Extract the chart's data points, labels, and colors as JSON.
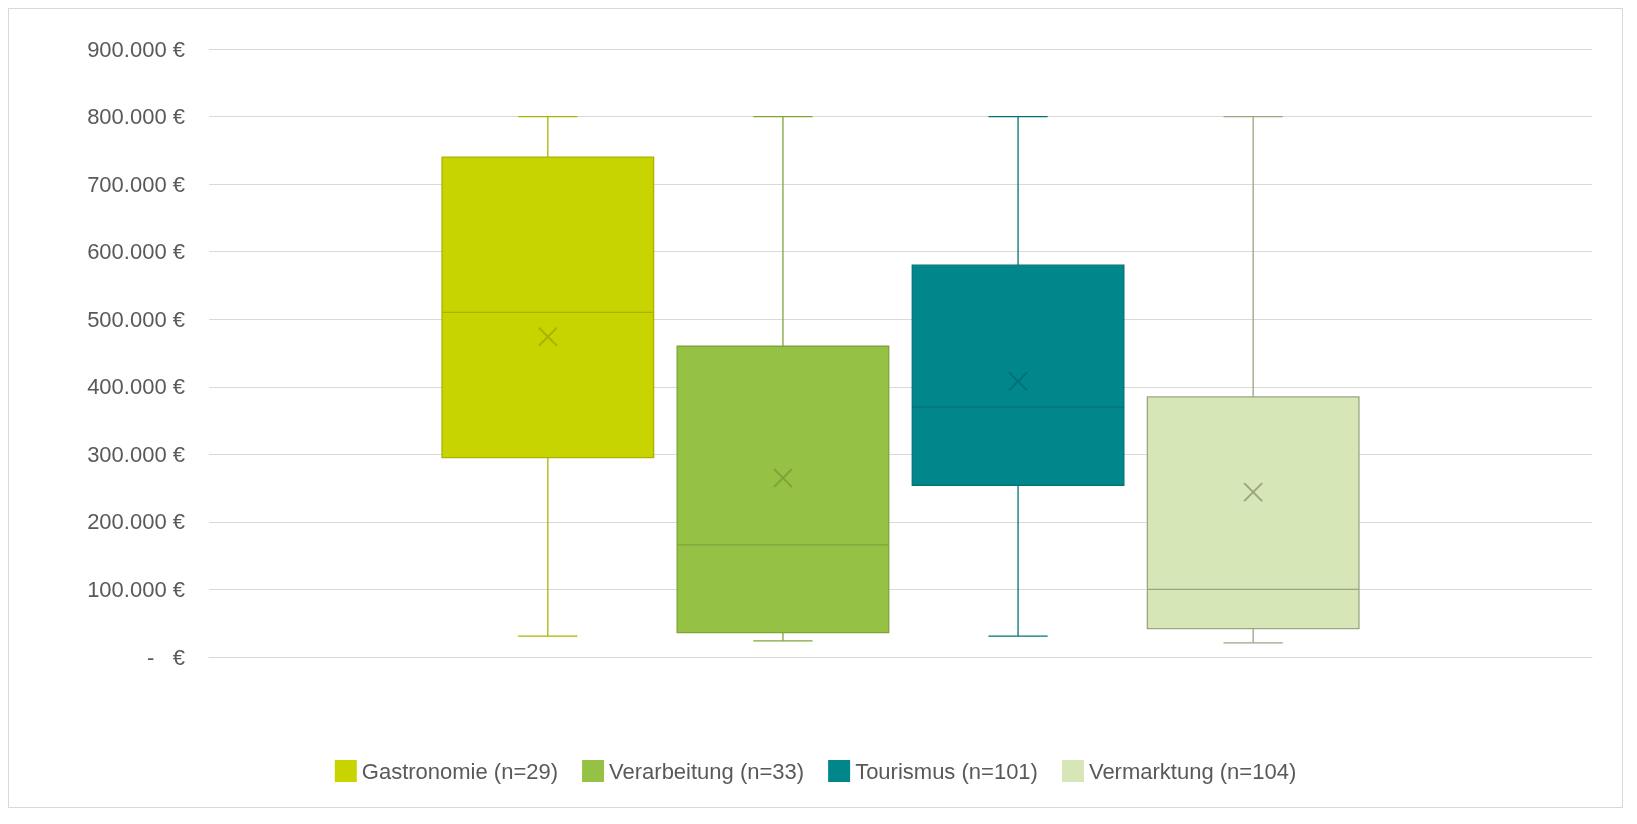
{
  "chart_data": {
    "type": "box",
    "categories": [
      null
    ],
    "series": [
      {
        "name": "Gastronomie (n=29)",
        "color": "#c8d400",
        "boxes": [
          {
            "low": 31000,
            "q1": 295000,
            "median": 510000,
            "q3": 740000,
            "high": 800000,
            "mean": 474000
          }
        ]
      },
      {
        "name": "Verarbeitung (n=33)",
        "color": "#95c144",
        "boxes": [
          {
            "low": 24000,
            "q1": 36000,
            "median": 166000,
            "q3": 460000,
            "high": 800000,
            "mean": 265000
          }
        ]
      },
      {
        "name": "Tourismus (n=101)",
        "color": "#00868b",
        "boxes": [
          {
            "low": 31000,
            "q1": 254000,
            "median": 370000,
            "q3": 580000,
            "high": 800000,
            "mean": 408000
          }
        ]
      },
      {
        "name": "Vermarktung (n=104)",
        "color": "#d6e6b6",
        "boxes": [
          {
            "low": 21000,
            "q1": 42000,
            "median": 100000,
            "q3": 385000,
            "high": 800000,
            "mean": 244000
          }
        ]
      }
    ],
    "ylim": [
      0,
      900000
    ],
    "yticks": [
      {
        "value": 0,
        "label": "-   €"
      },
      {
        "value": 100000,
        "label": "100.000 €"
      },
      {
        "value": 200000,
        "label": "200.000 €"
      },
      {
        "value": 300000,
        "label": "300.000 €"
      },
      {
        "value": 400000,
        "label": "400.000 €"
      },
      {
        "value": 500000,
        "label": "500.000 €"
      },
      {
        "value": 600000,
        "label": "600.000 €"
      },
      {
        "value": 700000,
        "label": "700.000 €"
      },
      {
        "value": 800000,
        "label": "800.000 €"
      },
      {
        "value": 900000,
        "label": "900.000 €"
      }
    ],
    "grid": "y",
    "legend": "bottom",
    "marker": "cross"
  }
}
